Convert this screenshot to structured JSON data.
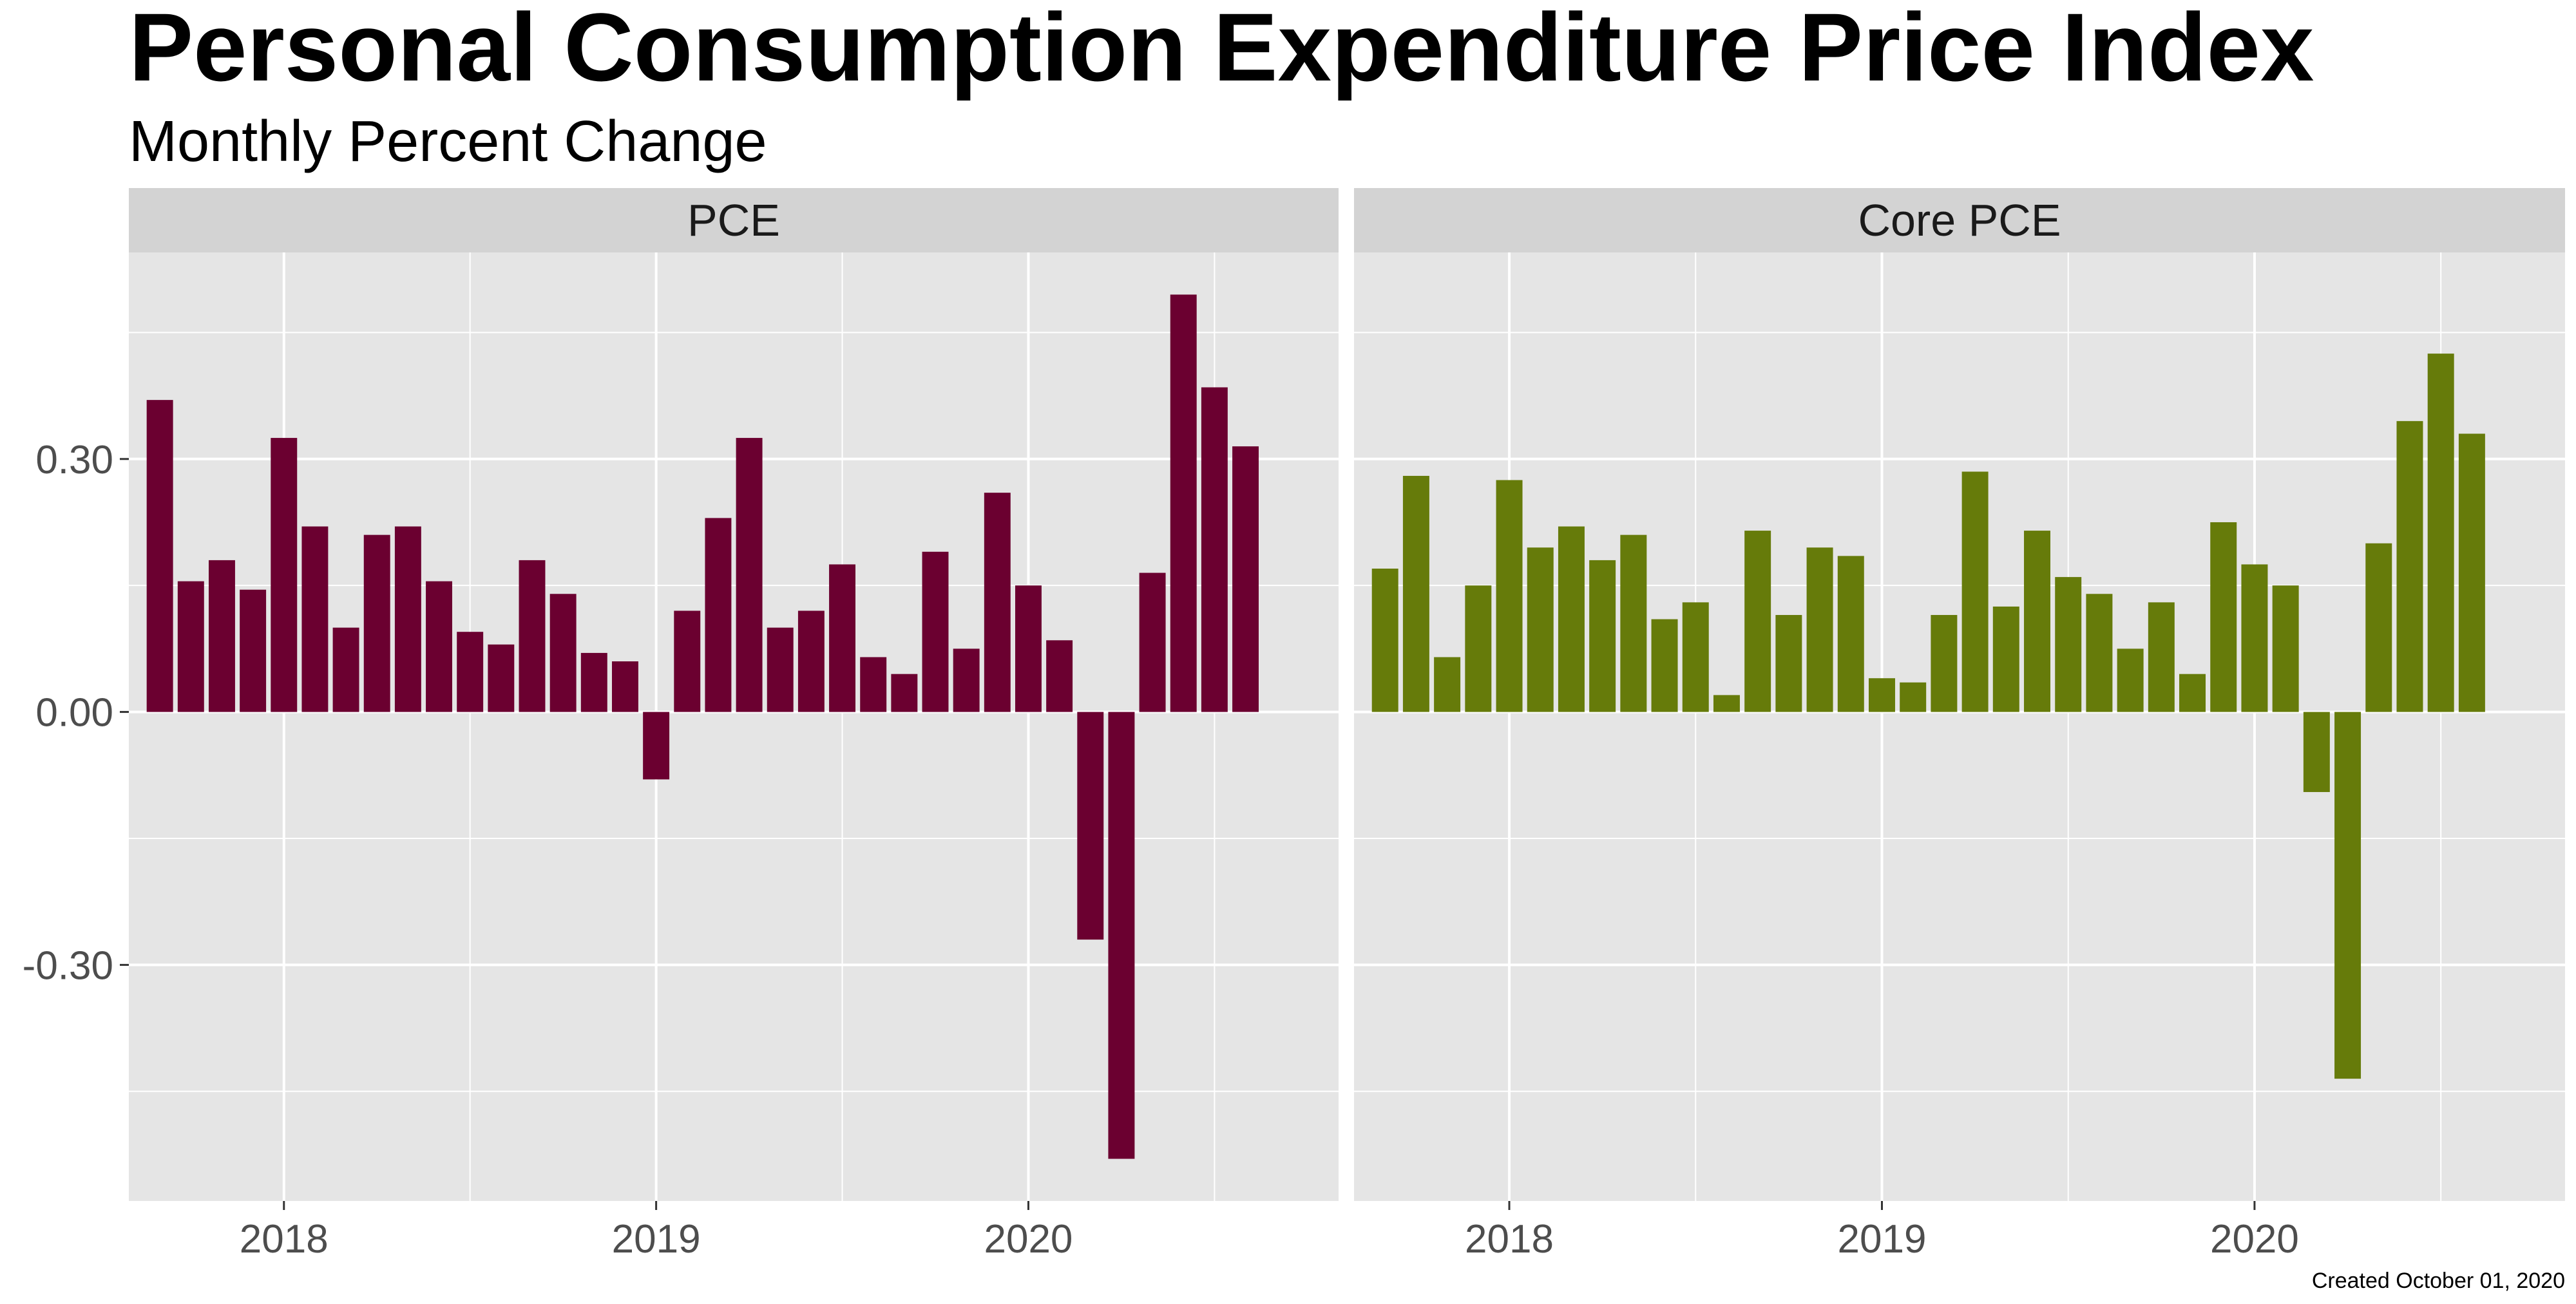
{
  "chart_data": {
    "type": "bar",
    "title": "Personal Consumption Expenditure Price Index",
    "subtitle": "Monthly Percent Change",
    "caption": "Created October 01, 2020",
    "xlabel": "",
    "ylabel": "",
    "ylim": [
      -0.58,
      0.545
    ],
    "y_ticks": [
      -0.3,
      0.0,
      0.3
    ],
    "y_tick_labels": [
      "-0.30",
      "0.00",
      "0.30"
    ],
    "x_ticks": [
      "2018",
      "2019",
      "2020"
    ],
    "x_tick_dates": [
      "2018-01-01",
      "2019-01-01",
      "2020-01-01"
    ],
    "xlim": [
      "2017-08-01",
      "2020-11-01"
    ],
    "grid": true,
    "legend": "none",
    "colors": {
      "PCE": "#6b0030",
      "Core PCE": "#667b0a",
      "panel_bg": "#e5e5e5",
      "strip_bg": "#d3d3d3",
      "grid": "#ffffff"
    },
    "dates": [
      "2017-09",
      "2017-10",
      "2017-11",
      "2017-12",
      "2018-01",
      "2018-02",
      "2018-03",
      "2018-04",
      "2018-05",
      "2018-06",
      "2018-07",
      "2018-08",
      "2018-09",
      "2018-10",
      "2018-11",
      "2018-12",
      "2019-01",
      "2019-02",
      "2019-03",
      "2019-04",
      "2019-05",
      "2019-06",
      "2019-07",
      "2019-08",
      "2019-09",
      "2019-10",
      "2019-11",
      "2019-12",
      "2020-01",
      "2020-02",
      "2020-03",
      "2020-04",
      "2020-05",
      "2020-06",
      "2020-07",
      "2020-08"
    ],
    "series": [
      {
        "name": "PCE",
        "values": [
          0.37,
          0.155,
          0.18,
          0.145,
          0.325,
          0.22,
          0.1,
          0.21,
          0.22,
          0.155,
          0.095,
          0.08,
          0.18,
          0.14,
          0.07,
          0.06,
          -0.08,
          0.12,
          0.23,
          0.325,
          0.1,
          0.12,
          0.175,
          0.065,
          0.045,
          0.19,
          0.075,
          0.26,
          0.15,
          0.085,
          -0.27,
          -0.53,
          0.165,
          0.495,
          0.385,
          0.315
        ]
      },
      {
        "name": "Core PCE",
        "values": [
          0.17,
          0.28,
          0.065,
          0.15,
          0.275,
          0.195,
          0.22,
          0.18,
          0.21,
          0.11,
          0.13,
          0.02,
          0.215,
          0.115,
          0.195,
          0.185,
          0.04,
          0.035,
          0.115,
          0.285,
          0.125,
          0.215,
          0.16,
          0.14,
          0.075,
          0.13,
          0.045,
          0.225,
          0.175,
          0.15,
          -0.095,
          -0.435,
          0.2,
          0.345,
          0.425,
          0.33
        ]
      }
    ]
  }
}
